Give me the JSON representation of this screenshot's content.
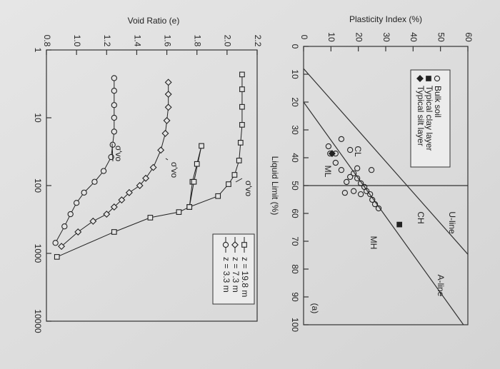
{
  "chart_data": [
    {
      "type": "scatter",
      "label": "(a)",
      "xlabel": "Liquid Limit (%)",
      "ylabel": "Plasticity Index (%)",
      "xlim": [
        0,
        100
      ],
      "ylim": [
        0,
        60
      ],
      "xticks": [
        0,
        10,
        20,
        30,
        40,
        50,
        60,
        70,
        80,
        90,
        100
      ],
      "yticks": [
        0,
        10,
        20,
        30,
        40,
        50,
        60
      ],
      "vline": 50,
      "series": [
        {
          "name": "Bulk soil",
          "marker": "circle",
          "color": "#222",
          "x": [
            35.9,
            38.5,
            41.8,
            44.4,
            48.7,
            46.9,
            45.6,
            47.4,
            49.2,
            50.5,
            52.0,
            53.1,
            55.1,
            56.7,
            58.2,
            53.1,
            52.0,
            52.6,
            33.3,
            37.2,
            44.4,
            43.8,
            38.5
          ],
          "values": [
            9.1,
            9.7,
            11.7,
            13.8,
            15.7,
            17.0,
            18.3,
            19.6,
            20.9,
            22.2,
            23.0,
            24.3,
            25.1,
            26.1,
            27.4,
            20.9,
            18.3,
            15.1,
            13.8,
            17.0,
            24.8,
            19.6,
            11.7
          ]
        },
        {
          "name": "Typical clay layer",
          "marker": "square",
          "color": "#222",
          "x": [
            64
          ],
          "values": [
            35
          ]
        },
        {
          "name": "Typical silt layer",
          "marker": "diamond",
          "color": "#222",
          "x": [
            38.5
          ],
          "values": [
            10.4
          ]
        }
      ],
      "lines": [
        {
          "name": "U-line",
          "x": [
            8,
            74.7
          ],
          "values": [
            0,
            60
          ]
        },
        {
          "name": "A-line",
          "x": [
            20,
            100
          ],
          "values": [
            0,
            58.4
          ]
        }
      ],
      "annotations": [
        "CL",
        "ML",
        "CH",
        "MH"
      ]
    },
    {
      "type": "line",
      "ylabel": "Void Ratio (e)",
      "xscale": "log",
      "xlim": [
        1,
        10000
      ],
      "xticks": [
        1,
        10,
        100,
        1000,
        10000
      ],
      "ylim": [
        0.8,
        2.2
      ],
      "yticks": [
        0.8,
        {
          "value": 1.0,
          "label": "1.0"
        },
        1.2,
        1.4,
        1.6,
        1.8,
        {
          "value": 2.0,
          "label": "2.0"
        },
        2.2
      ],
      "series": [
        {
          "name": "z = 19.8 m",
          "marker": "square",
          "color": "#222",
          "x": [
            2.3,
            3.8,
            6.9,
            12.7,
            23.3,
            42.7,
            69.5,
            95.4,
            143,
            207,
            88,
            48,
            26,
            88,
            207,
            246,
            297,
            483,
            1126
          ],
          "values": [
            2.1,
            2.1,
            2.1,
            2.1,
            2.09,
            2.08,
            2.05,
            2.01,
            1.94,
            1.75,
            1.77,
            1.8,
            1.83,
            1.78,
            1.75,
            1.68,
            1.49,
            1.25,
            0.87
          ]
        },
        {
          "name": "z = 7.3 m",
          "marker": "diamond",
          "color": "#222",
          "x": [
            3,
            4.5,
            7,
            11,
            17,
            30,
            54,
            78,
            100,
            127,
            163,
            207,
            264,
            335,
            483,
            788
          ],
          "values": [
            1.61,
            1.61,
            1.61,
            1.6,
            1.59,
            1.56,
            1.51,
            1.46,
            1.42,
            1.35,
            1.3,
            1.25,
            1.2,
            1.11,
            1.01,
            0.9
          ]
        },
        {
          "name": "z = 3.3 m",
          "marker": "circle",
          "color": "#222",
          "x": [
            2.6,
            4,
            6.5,
            10,
            16,
            25,
            38,
            61,
            88,
            127,
            180,
            264,
            400,
            700
          ],
          "values": [
            1.25,
            1.25,
            1.25,
            1.25,
            1.25,
            1.24,
            1.23,
            1.18,
            1.12,
            1.05,
            1.0,
            0.96,
            0.92,
            0.86
          ]
        }
      ],
      "annotations": [
        "σ'vo",
        "σ'vo",
        "σ'vo"
      ]
    }
  ]
}
